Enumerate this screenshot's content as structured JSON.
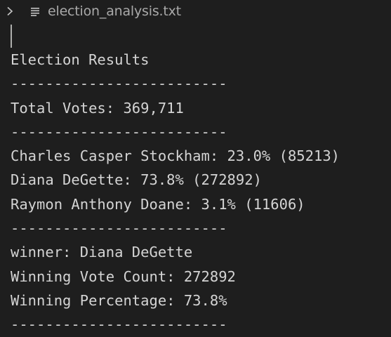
{
  "breadcrumb": {
    "chevron_icon": "chevron-right-icon",
    "file_icon": "text-file-icon",
    "file_name": "election_analysis.txt"
  },
  "document": {
    "lines": [
      "Election Results",
      "-------------------------",
      "Total Votes: 369,711",
      "-------------------------",
      "Charles Casper Stockham: 23.0% (85213)",
      "Diana DeGette: 73.8% (272892)",
      "Raymon Anthony Doane: 3.1% (11606)",
      "-------------------------",
      "winner: Diana DeGette",
      "Winning Vote Count: 272892",
      "Winning Percentage: 73.8%",
      "-------------------------"
    ]
  }
}
